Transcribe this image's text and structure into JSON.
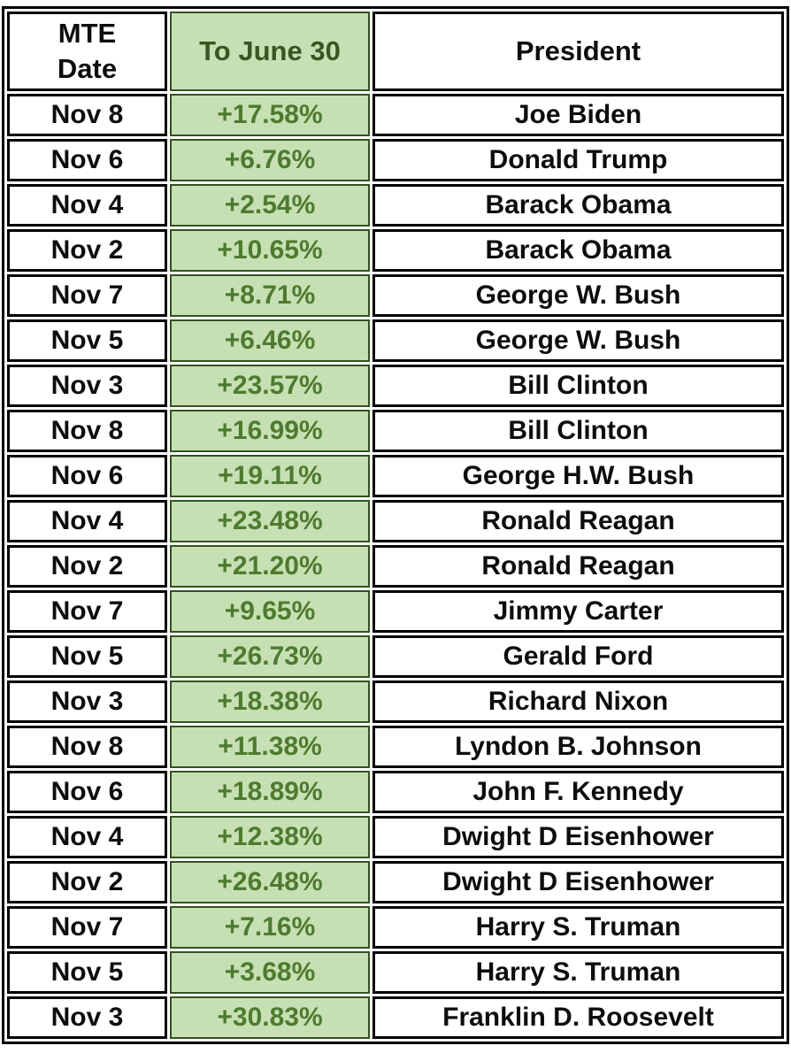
{
  "colors": {
    "cell_border_black": "#000000",
    "green_fill": "#c6e0b4",
    "green_border": "#33531f",
    "green_header_text": "#375623",
    "green_value_text": "#4e7a2f",
    "text_black": "#0d0d0d",
    "background": "#ffffff"
  },
  "table": {
    "header": {
      "col1": "MTE\nDate",
      "col2": "To June 30",
      "col3": "President"
    }
  },
  "chart_data": {
    "type": "table",
    "columns": [
      "MTE Date",
      "To June 30",
      "President"
    ],
    "rows": [
      [
        "Nov 8",
        "+17.58%",
        "Joe Biden"
      ],
      [
        "Nov 6",
        "+6.76%",
        "Donald Trump"
      ],
      [
        "Nov 4",
        "+2.54%",
        "Barack Obama"
      ],
      [
        "Nov 2",
        "+10.65%",
        "Barack Obama"
      ],
      [
        "Nov 7",
        "+8.71%",
        "George W. Bush"
      ],
      [
        "Nov 5",
        "+6.46%",
        "George W. Bush"
      ],
      [
        "Nov 3",
        "+23.57%",
        "Bill Clinton"
      ],
      [
        "Nov 8",
        "+16.99%",
        "Bill Clinton"
      ],
      [
        "Nov 6",
        "+19.11%",
        "George H.W. Bush"
      ],
      [
        "Nov 4",
        "+23.48%",
        "Ronald Reagan"
      ],
      [
        "Nov 2",
        "+21.20%",
        "Ronald Reagan"
      ],
      [
        "Nov 7",
        "+9.65%",
        "Jimmy Carter"
      ],
      [
        "Nov 5",
        "+26.73%",
        "Gerald Ford"
      ],
      [
        "Nov 3",
        "+18.38%",
        "Richard Nixon"
      ],
      [
        "Nov 8",
        "+11.38%",
        "Lyndon B. Johnson"
      ],
      [
        "Nov 6",
        "+18.89%",
        "John F. Kennedy"
      ],
      [
        "Nov 4",
        "+12.38%",
        "Dwight D Eisenhower"
      ],
      [
        "Nov 2",
        "+26.48%",
        "Dwight D Eisenhower"
      ],
      [
        "Nov 7",
        "+7.16%",
        "Harry S. Truman"
      ],
      [
        "Nov 5",
        "+3.68%",
        "Harry S. Truman"
      ],
      [
        "Nov 3",
        "+30.83%",
        "Franklin D. Roosevelt"
      ]
    ]
  }
}
